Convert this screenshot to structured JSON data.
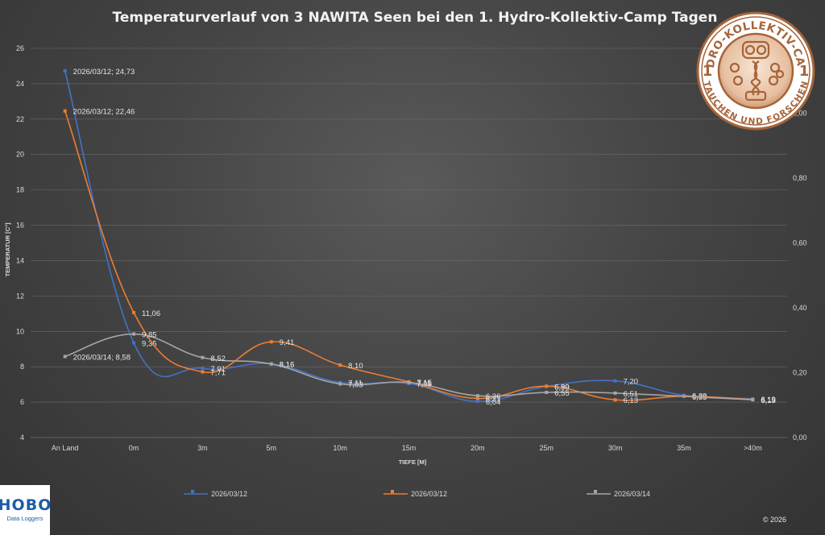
{
  "chart_data": {
    "type": "line",
    "title": "Temperaturverlauf von 3 NAWITA Seen bei den 1. Hydro-Kollektiv-Camp Tagen",
    "xlabel": "TIEFE [M]",
    "ylabel": "TEMPERATUR [C°]",
    "categories": [
      "An Land",
      "0m",
      "3m",
      "5m",
      "10m",
      "15m",
      "20m",
      "25m",
      "30m",
      "35m",
      ">40m"
    ],
    "ylim": [
      4,
      26
    ],
    "yticks": [
      "4",
      "6",
      "8",
      "10",
      "12",
      "14",
      "16",
      "18",
      "20",
      "22",
      "24",
      "26"
    ],
    "y2lim": [
      0,
      1.2
    ],
    "y2ticks": [
      "0,00",
      "0,20",
      "0,40",
      "0,60",
      "0,80",
      "1,00"
    ],
    "grid": true,
    "legend": "bottom",
    "series": [
      {
        "name": "2026/03/12",
        "color": "#4472c4",
        "values": [
          24.73,
          9.35,
          7.91,
          8.16,
          7.11,
          7.05,
          6.04,
          6.89,
          7.2,
          6.39,
          6.19
        ],
        "labels": [
          "2026/03/12; 24,73",
          "9,35",
          "7,91",
          "8,16",
          "7,11",
          "7,05",
          "6,04",
          "6,89",
          "7,20",
          "6,39",
          "6,19"
        ]
      },
      {
        "name": "2026/03/12",
        "color": "#ed7d31",
        "values": [
          22.46,
          11.06,
          7.71,
          9.41,
          8.1,
          7.15,
          6.21,
          6.9,
          6.13,
          6.33,
          6.15
        ],
        "labels": [
          "2026/03/12; 22,46",
          "11,06",
          "7,71",
          "9,41",
          "8,10",
          "7,15",
          "6,21",
          "6,90",
          "6,13",
          "6,33",
          "6,15"
        ]
      },
      {
        "name": "2026/03/14",
        "color": "#a5a5a5",
        "values": [
          8.58,
          9.85,
          8.52,
          8.16,
          7.03,
          7.11,
          6.36,
          6.55,
          6.51,
          null,
          6.13
        ],
        "labels": [
          "2026/03/14; 8,58",
          "9,85",
          "8,52",
          "8,16",
          "7,03",
          "7,11",
          "6,36",
          "6,55",
          "6,51",
          "",
          "6,13"
        ]
      }
    ]
  },
  "logo": {
    "top_text": "HYDRO-KOLLEKTIV-CAMP",
    "bottom_text": "TAUCHEN UND FORSCHEN",
    "left_number": "1",
    "right_number": "1"
  },
  "hobo": {
    "main": "HOBO",
    "sub": "Data Loggers"
  },
  "copyright": "© 2026"
}
